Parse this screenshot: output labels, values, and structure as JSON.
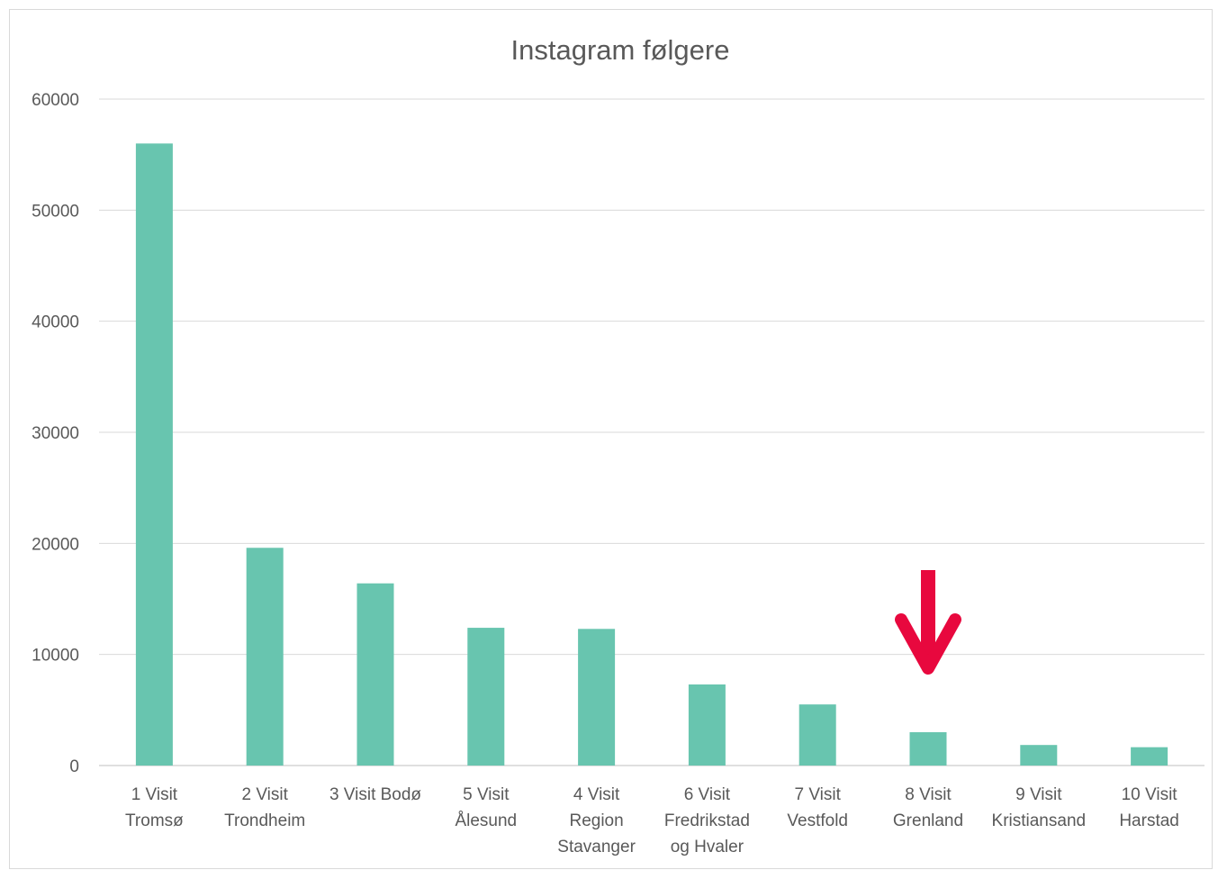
{
  "chart_data": {
    "type": "bar",
    "title": "Instagram følgere",
    "xlabel": "",
    "ylabel": "",
    "ylim": [
      0,
      60000
    ],
    "yticks": [
      0,
      10000,
      20000,
      30000,
      40000,
      50000,
      60000
    ],
    "grid": true,
    "legend": "none",
    "bar_color": "#68C5AF",
    "categories": [
      [
        "1 Visit",
        "Tromsø"
      ],
      [
        "2 Visit",
        "Trondheim"
      ],
      [
        "3 Visit Bodø"
      ],
      [
        "5 Visit",
        "Ålesund"
      ],
      [
        "4 Visit",
        "Region",
        "Stavanger"
      ],
      [
        "6 Visit",
        "Fredrikstad",
        "og Hvaler"
      ],
      [
        "7 Visit",
        "Vestfold"
      ],
      [
        "8 Visit",
        "Grenland"
      ],
      [
        "9 Visit",
        "Kristiansand"
      ],
      [
        "10 Visit",
        "Harstad"
      ]
    ],
    "values": [
      56000,
      19600,
      16400,
      12400,
      12300,
      7300,
      5500,
      3000,
      1850,
      1650
    ],
    "annotation": {
      "type": "arrow-down",
      "target_category_index": 7,
      "color": "#E8083E"
    }
  }
}
